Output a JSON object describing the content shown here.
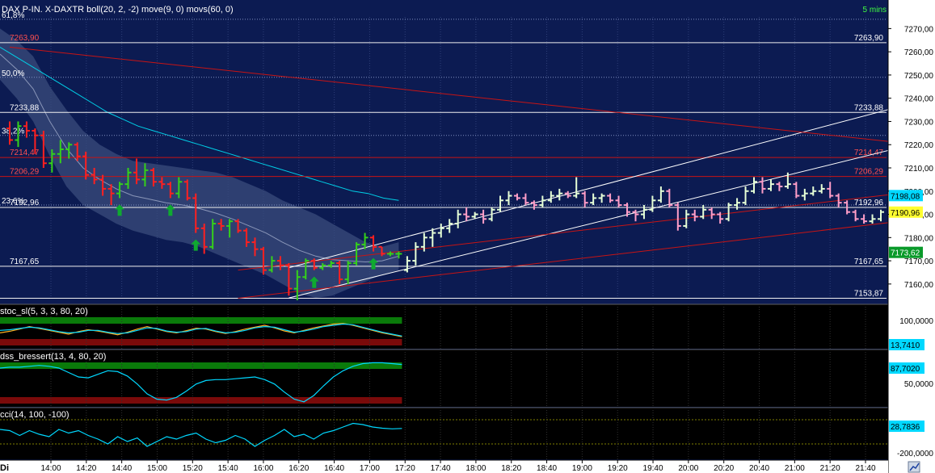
{
  "header": {
    "title": "DAX P-IN.  X-DAXTR boll(20, 2, -2) move(9, 0) movs(60, 0)",
    "timeframe": "5 mins"
  },
  "colors": {
    "background": "#0c1b52",
    "panel_background": "#000000",
    "axis_background": "#ffffff",
    "candle_up": "#35d11a",
    "candle_down": "#ff2020",
    "candle_up_future": "#e6ffd6",
    "candle_down_future": "#ff9ec8",
    "moving_average": "#00cfe6",
    "bollinger_fill": "#3a4c7c",
    "fibonacci_line": "#ffffff",
    "resistance_line": "#c81414",
    "trend_line": "#ffffff",
    "overbought_band": "#0a7a0a",
    "oversold_band": "#7a0a0a",
    "signal_arrow": "#0faa30"
  },
  "chart_data": {
    "type": "candlestick",
    "ylim": [
      7153,
      7275
    ],
    "y_ticks": [
      "7270,00",
      "7260,00",
      "7250,00",
      "7240,00",
      "7230,00",
      "7220,00",
      "7210,00",
      "7200,00",
      "7190,00",
      "7180,00",
      "7170,00",
      "7160,00"
    ],
    "x_ticks": [
      "14:00",
      "14:20",
      "14:40",
      "15:00",
      "15:20",
      "15:40",
      "16:00",
      "16:20",
      "16:40",
      "17:00",
      "17:20",
      "17:40",
      "18:00",
      "18:20",
      "18:40",
      "19:00",
      "19:20",
      "19:40",
      "20:00",
      "20:20",
      "20:40",
      "21:00",
      "21:20",
      "21:40"
    ],
    "fibonacci_levels": [
      {
        "label": "61,8%",
        "value": 7274
      },
      {
        "label": "50,0%",
        "value": 7249
      },
      {
        "label": "38,2%",
        "value": 7224
      },
      {
        "label": "23,6%",
        "value": 7194
      }
    ],
    "horizontal_levels": [
      {
        "label": "7263,90",
        "value": 7263.9,
        "color": "white"
      },
      {
        "label": "7233,88",
        "value": 7233.88,
        "color": "white"
      },
      {
        "label": "7214,47",
        "value": 7214.47,
        "color": "red"
      },
      {
        "label": "7206,29",
        "value": 7206.29,
        "color": "red"
      },
      {
        "label": "7192,96",
        "value": 7192.96,
        "color": "white"
      },
      {
        "label": "7167,65",
        "value": 7167.65,
        "color": "white"
      },
      {
        "label": "7153,87",
        "value": 7153.87,
        "color": "white"
      }
    ],
    "price_tags": [
      {
        "label": "7198,08",
        "value": 7198.08,
        "style": "cyan"
      },
      {
        "label": "7190,96",
        "value": 7190.96,
        "style": "yellow"
      },
      {
        "label": "7173,62",
        "value": 7173.62,
        "style": "green"
      }
    ],
    "candles": [
      {
        "o": 7227,
        "h": 7230,
        "l": 7220,
        "c": 7222
      },
      {
        "o": 7222,
        "h": 7230,
        "l": 7219,
        "c": 7228
      },
      {
        "o": 7228,
        "h": 7230,
        "l": 7223,
        "c": 7226
      },
      {
        "o": 7226,
        "h": 7227,
        "l": 7216,
        "c": 7224
      },
      {
        "o": 7224,
        "h": 7226,
        "l": 7210,
        "c": 7212
      },
      {
        "o": 7212,
        "h": 7218,
        "l": 7208,
        "c": 7216
      },
      {
        "o": 7216,
        "h": 7222,
        "l": 7212,
        "c": 7218
      },
      {
        "o": 7218,
        "h": 7221,
        "l": 7214,
        "c": 7220
      },
      {
        "o": 7220,
        "h": 7221,
        "l": 7213,
        "c": 7215
      },
      {
        "o": 7215,
        "h": 7217,
        "l": 7205,
        "c": 7207
      },
      {
        "o": 7207,
        "h": 7210,
        "l": 7203,
        "c": 7205
      },
      {
        "o": 7205,
        "h": 7207,
        "l": 7198,
        "c": 7201
      },
      {
        "o": 7201,
        "h": 7203,
        "l": 7194,
        "c": 7199
      },
      {
        "o": 7199,
        "h": 7204,
        "l": 7197,
        "c": 7203
      },
      {
        "o": 7203,
        "h": 7210,
        "l": 7201,
        "c": 7208
      },
      {
        "o": 7208,
        "h": 7214,
        "l": 7203,
        "c": 7205
      },
      {
        "o": 7205,
        "h": 7212,
        "l": 7202,
        "c": 7209
      },
      {
        "o": 7209,
        "h": 7210,
        "l": 7202,
        "c": 7204
      },
      {
        "o": 7204,
        "h": 7206,
        "l": 7201,
        "c": 7203
      },
      {
        "o": 7203,
        "h": 7204,
        "l": 7197,
        "c": 7199
      },
      {
        "o": 7199,
        "h": 7206,
        "l": 7197,
        "c": 7204
      },
      {
        "o": 7204,
        "h": 7205,
        "l": 7196,
        "c": 7197
      },
      {
        "o": 7197,
        "h": 7199,
        "l": 7182,
        "c": 7184
      },
      {
        "o": 7184,
        "h": 7186,
        "l": 7173,
        "c": 7176
      },
      {
        "o": 7176,
        "h": 7188,
        "l": 7175,
        "c": 7186
      },
      {
        "o": 7186,
        "h": 7188,
        "l": 7183,
        "c": 7185
      },
      {
        "o": 7185,
        "h": 7188,
        "l": 7180,
        "c": 7187
      },
      {
        "o": 7187,
        "h": 7188,
        "l": 7182,
        "c": 7183
      },
      {
        "o": 7183,
        "h": 7184,
        "l": 7176,
        "c": 7178
      },
      {
        "o": 7178,
        "h": 7180,
        "l": 7172,
        "c": 7175
      },
      {
        "o": 7175,
        "h": 7176,
        "l": 7164,
        "c": 7166
      },
      {
        "o": 7166,
        "h": 7172,
        "l": 7165,
        "c": 7170
      },
      {
        "o": 7170,
        "h": 7172,
        "l": 7166,
        "c": 7168
      },
      {
        "o": 7168,
        "h": 7169,
        "l": 7155,
        "c": 7158
      },
      {
        "o": 7158,
        "h": 7166,
        "l": 7153,
        "c": 7163
      },
      {
        "o": 7163,
        "h": 7171,
        "l": 7162,
        "c": 7170
      },
      {
        "o": 7170,
        "h": 7171,
        "l": 7166,
        "c": 7167
      },
      {
        "o": 7167,
        "h": 7169,
        "l": 7166,
        "c": 7168
      },
      {
        "o": 7168,
        "h": 7170,
        "l": 7167,
        "c": 7169
      },
      {
        "o": 7169,
        "h": 7170,
        "l": 7160,
        "c": 7162
      },
      {
        "o": 7162,
        "h": 7170,
        "l": 7160,
        "c": 7169
      },
      {
        "o": 7169,
        "h": 7178,
        "l": 7168,
        "c": 7177
      },
      {
        "o": 7177,
        "h": 7182,
        "l": 7175,
        "c": 7180
      },
      {
        "o": 7180,
        "h": 7181,
        "l": 7174,
        "c": 7176
      },
      {
        "o": 7176,
        "h": 7176,
        "l": 7172,
        "c": 7173
      },
      {
        "o": 7173,
        "h": 7174,
        "l": 7172,
        "c": 7173
      },
      {
        "o": 7173,
        "h": 7174,
        "l": 7171,
        "c": 7173
      },
      {
        "o": 7166,
        "h": 7172,
        "l": 7165,
        "c": 7170
      },
      {
        "o": 7170,
        "h": 7178,
        "l": 7168,
        "c": 7176
      },
      {
        "o": 7176,
        "h": 7182,
        "l": 7174,
        "c": 7180
      },
      {
        "o": 7180,
        "h": 7184,
        "l": 7176,
        "c": 7182
      },
      {
        "o": 7182,
        "h": 7186,
        "l": 7180,
        "c": 7184
      },
      {
        "o": 7184,
        "h": 7188,
        "l": 7182,
        "c": 7186
      },
      {
        "o": 7186,
        "h": 7192,
        "l": 7184,
        "c": 7190
      },
      {
        "o": 7190,
        "h": 7193,
        "l": 7187,
        "c": 7189
      },
      {
        "o": 7189,
        "h": 7191,
        "l": 7188,
        "c": 7190
      },
      {
        "o": 7190,
        "h": 7192,
        "l": 7186,
        "c": 7188
      },
      {
        "o": 7188,
        "h": 7193,
        "l": 7187,
        "c": 7192
      },
      {
        "o": 7192,
        "h": 7198,
        "l": 7191,
        "c": 7196
      },
      {
        "o": 7196,
        "h": 7200,
        "l": 7194,
        "c": 7198
      },
      {
        "o": 7198,
        "h": 7199,
        "l": 7196,
        "c": 7197
      },
      {
        "o": 7197,
        "h": 7199,
        "l": 7194,
        "c": 7195
      },
      {
        "o": 7195,
        "h": 7196,
        "l": 7192,
        "c": 7194
      },
      {
        "o": 7194,
        "h": 7198,
        "l": 7193,
        "c": 7196
      },
      {
        "o": 7196,
        "h": 7200,
        "l": 7195,
        "c": 7198
      },
      {
        "o": 7198,
        "h": 7201,
        "l": 7196,
        "c": 7199
      },
      {
        "o": 7199,
        "h": 7200,
        "l": 7197,
        "c": 7198
      },
      {
        "o": 7198,
        "h": 7206,
        "l": 7197,
        "c": 7199
      },
      {
        "o": 7199,
        "h": 7200,
        "l": 7193,
        "c": 7195
      },
      {
        "o": 7195,
        "h": 7199,
        "l": 7194,
        "c": 7197
      },
      {
        "o": 7197,
        "h": 7199,
        "l": 7195,
        "c": 7198
      },
      {
        "o": 7198,
        "h": 7199,
        "l": 7195,
        "c": 7196
      },
      {
        "o": 7196,
        "h": 7198,
        "l": 7193,
        "c": 7194
      },
      {
        "o": 7194,
        "h": 7195,
        "l": 7189,
        "c": 7191
      },
      {
        "o": 7191,
        "h": 7192,
        "l": 7187,
        "c": 7190
      },
      {
        "o": 7190,
        "h": 7194,
        "l": 7188,
        "c": 7192
      },
      {
        "o": 7192,
        "h": 7198,
        "l": 7191,
        "c": 7196
      },
      {
        "o": 7196,
        "h": 7202,
        "l": 7195,
        "c": 7200
      },
      {
        "o": 7200,
        "h": 7201,
        "l": 7193,
        "c": 7194
      },
      {
        "o": 7194,
        "h": 7195,
        "l": 7183,
        "c": 7185
      },
      {
        "o": 7185,
        "h": 7192,
        "l": 7184,
        "c": 7190
      },
      {
        "o": 7190,
        "h": 7192,
        "l": 7187,
        "c": 7189
      },
      {
        "o": 7189,
        "h": 7194,
        "l": 7188,
        "c": 7192
      },
      {
        "o": 7192,
        "h": 7193,
        "l": 7188,
        "c": 7190
      },
      {
        "o": 7190,
        "h": 7191,
        "l": 7186,
        "c": 7188
      },
      {
        "o": 7188,
        "h": 7195,
        "l": 7187,
        "c": 7194
      },
      {
        "o": 7194,
        "h": 7197,
        "l": 7192,
        "c": 7195
      },
      {
        "o": 7195,
        "h": 7202,
        "l": 7194,
        "c": 7200
      },
      {
        "o": 7200,
        "h": 7206,
        "l": 7199,
        "c": 7204
      },
      {
        "o": 7204,
        "h": 7206,
        "l": 7199,
        "c": 7201
      },
      {
        "o": 7201,
        "h": 7205,
        "l": 7200,
        "c": 7203
      },
      {
        "o": 7203,
        "h": 7204,
        "l": 7200,
        "c": 7202
      },
      {
        "o": 7202,
        "h": 7208,
        "l": 7201,
        "c": 7203
      },
      {
        "o": 7203,
        "h": 7204,
        "l": 7197,
        "c": 7198
      },
      {
        "o": 7198,
        "h": 7201,
        "l": 7196,
        "c": 7199
      },
      {
        "o": 7199,
        "h": 7202,
        "l": 7198,
        "c": 7200
      },
      {
        "o": 7200,
        "h": 7203,
        "l": 7199,
        "c": 7201
      },
      {
        "o": 7201,
        "h": 7204,
        "l": 7197,
        "c": 7198
      },
      {
        "o": 7198,
        "h": 7199,
        "l": 7193,
        "c": 7195
      },
      {
        "o": 7195,
        "h": 7196,
        "l": 7190,
        "c": 7191
      },
      {
        "o": 7191,
        "h": 7192,
        "l": 7187,
        "c": 7188
      },
      {
        "o": 7188,
        "h": 7190,
        "l": 7186,
        "c": 7187
      },
      {
        "o": 7187,
        "h": 7190,
        "l": 7186,
        "c": 7188
      },
      {
        "o": 7188,
        "h": 7192,
        "l": 7187,
        "c": 7191
      }
    ],
    "moving_average": [
      7262,
      7258,
      7254,
      7250,
      7246,
      7242,
      7238,
      7234,
      7231,
      7228,
      7226,
      7224,
      7222,
      7220,
      7218,
      7216,
      7214,
      7212,
      7210,
      7208,
      7206,
      7204,
      7202,
      7200,
      7199,
      7197,
      7196
    ],
    "bollinger_upper": [
      7270,
      7265,
      7258,
      7245,
      7235,
      7226,
      7220,
      7216,
      7213,
      7212,
      7211,
      7210,
      7209,
      7208,
      7206,
      7203,
      7200,
      7196,
      7193,
      7190,
      7186,
      7182,
      7178,
      7176,
      7178
    ],
    "bollinger_lower": [
      7248,
      7240,
      7230,
      7215,
      7202,
      7194,
      7190,
      7186,
      7183,
      7181,
      7179,
      7178,
      7176,
      7173,
      7170,
      7167,
      7164,
      7160,
      7156,
      7154,
      7155,
      7158,
      7161,
      7164,
      7166
    ],
    "trend_lines": [
      {
        "from": [
          33,
          7167
        ],
        "to": [
          110,
          7241
        ],
        "color": "white"
      },
      {
        "from": [
          33,
          7154
        ],
        "to": [
          110,
          7223
        ],
        "color": "white"
      },
      {
        "from": [
          27,
          7166
        ],
        "to": [
          110,
          7201
        ],
        "color": "red"
      },
      {
        "from": [
          27,
          7153.87
        ],
        "to": [
          110,
          7189
        ],
        "color": "red"
      },
      {
        "from": [
          0,
          7262
        ],
        "to": [
          110,
          7219
        ],
        "color": "red"
      }
    ],
    "signal_arrows": [
      13,
      19,
      22,
      36,
      43
    ]
  },
  "indicators": [
    {
      "name": "stoc_sl(5, 3, 3, 80, 20)",
      "value": "13,7410",
      "scale_label": "100,0000",
      "series": [
        {
          "name": "",
          "color": "#ffb020",
          "values": [
            40,
            45,
            52,
            60,
            54,
            48,
            42,
            36,
            44,
            50,
            46,
            40,
            34,
            42,
            52,
            60,
            52,
            44,
            40,
            47,
            55,
            52,
            44,
            38,
            44,
            52,
            58,
            64,
            56,
            46,
            40,
            48,
            56,
            62,
            68,
            70,
            64,
            56,
            48,
            40,
            34,
            28
          ]
        },
        {
          "name": "",
          "color": "#00d8ff",
          "values": [
            48,
            50,
            54,
            58,
            56,
            50,
            44,
            40,
            42,
            48,
            48,
            42,
            38,
            40,
            48,
            56,
            54,
            46,
            42,
            44,
            52,
            54,
            46,
            40,
            42,
            48,
            56,
            60,
            58,
            50,
            42,
            46,
            52,
            60,
            64,
            68,
            66,
            58,
            50,
            42,
            36,
            30
          ]
        }
      ]
    },
    {
      "name": "dss_bressert(13, 4, 80, 20)",
      "value": "87,7020",
      "scale_label": "50,0000",
      "series": [
        {
          "name": "",
          "color": "#00d8ff",
          "values": [
            80,
            82,
            82,
            84,
            86,
            84,
            80,
            70,
            60,
            58,
            66,
            74,
            72,
            62,
            44,
            22,
            10,
            8,
            14,
            28,
            44,
            52,
            54,
            54,
            56,
            58,
            60,
            54,
            44,
            26,
            10,
            4,
            18,
            40,
            60,
            74,
            84,
            90,
            92,
            92,
            90,
            88
          ]
        }
      ]
    },
    {
      "name": "cci(14, 100, -100)",
      "value": "28,7836",
      "scale_label": "-200,0000",
      "series": [
        {
          "name": "",
          "color": "#00d8ff",
          "values": [
            20,
            10,
            -30,
            10,
            -20,
            -40,
            20,
            -10,
            10,
            -30,
            -60,
            -100,
            -40,
            -80,
            -50,
            -120,
            -80,
            -40,
            -60,
            -30,
            -10,
            -60,
            -90,
            -70,
            -30,
            -60,
            -120,
            -70,
            -30,
            20,
            -40,
            -20,
            -60,
            -10,
            10,
            40,
            70,
            60,
            40,
            30,
            25,
            28
          ]
        }
      ]
    }
  ],
  "footer": {
    "left_label": "Di",
    "corner_icon": "chart-type-icon"
  }
}
